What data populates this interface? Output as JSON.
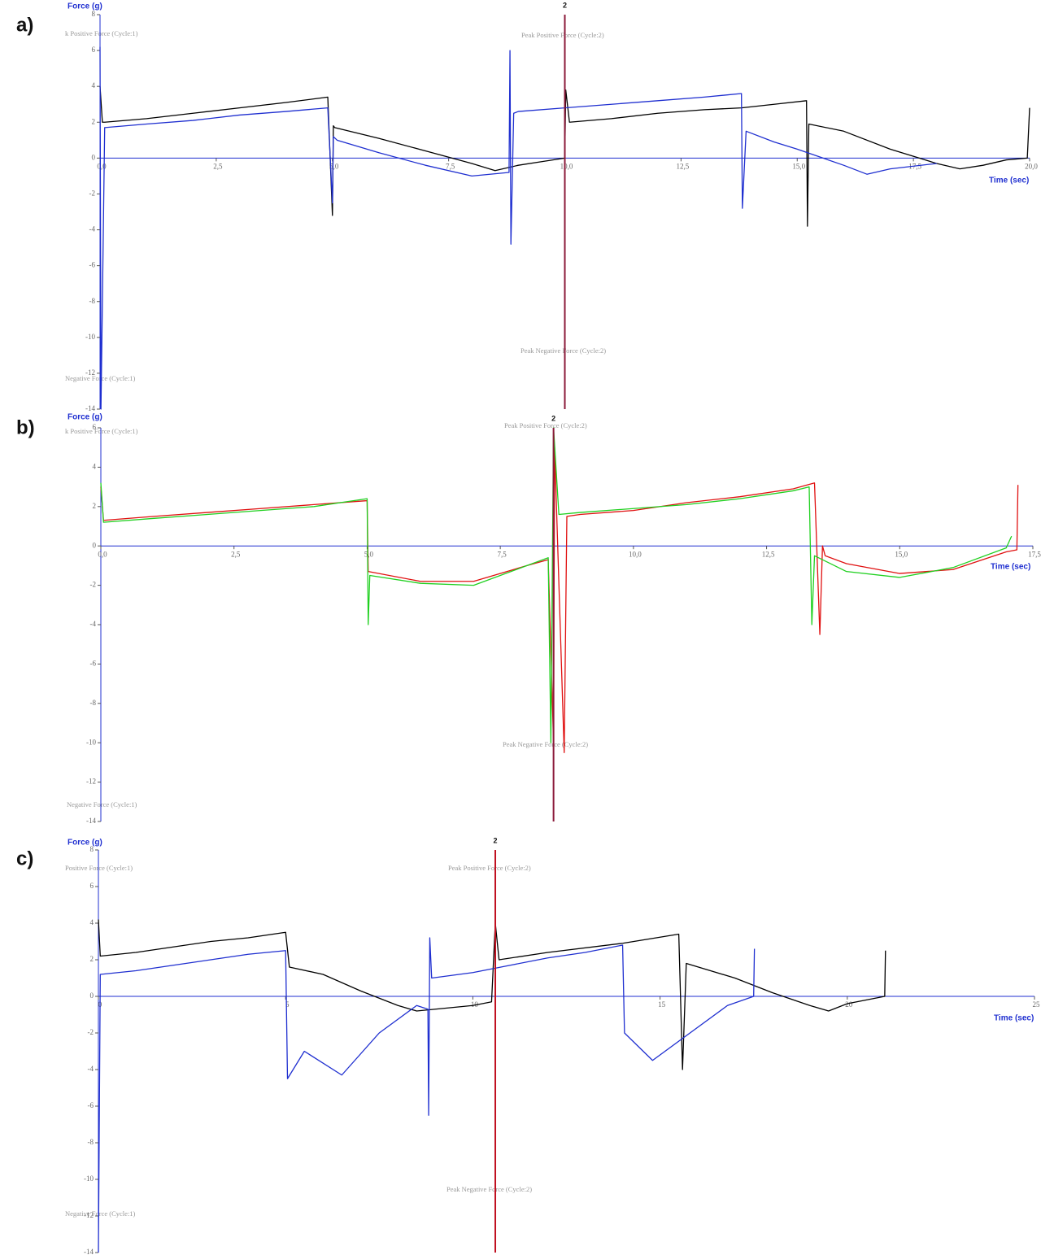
{
  "chart_data": [
    {
      "type": "line",
      "label": "a)",
      "title": "Force (g)",
      "x_label": "Time (sec)",
      "xlim": [
        0,
        20
      ],
      "ylim": [
        -14,
        8
      ],
      "xticks": [
        {
          "value": 0,
          "label": "0,0"
        },
        {
          "value": 2.5,
          "label": "2,5"
        },
        {
          "value": 5,
          "label": "5,0"
        },
        {
          "value": 7.5,
          "label": "7,5"
        },
        {
          "value": 10,
          "label": "10,0"
        },
        {
          "value": 12.5,
          "label": "12,5"
        },
        {
          "value": 15,
          "label": "15,0"
        },
        {
          "value": 17.5,
          "label": "17,5"
        },
        {
          "value": 20,
          "label": "20,0"
        }
      ],
      "yticks": [
        8,
        6,
        4,
        2,
        0,
        -2,
        -4,
        -6,
        -8,
        -10,
        -12,
        -14
      ],
      "annotations": [
        "k Positive Force (Cycle:1)",
        "Peak Positive Force (Cycle:2)",
        "Peak Negative Force (Cycle:2)",
        "Negative Force (Cycle:1)"
      ],
      "cursor": {
        "x": 10,
        "label": "2",
        "color": "#8b1a3a"
      },
      "series": [
        {
          "color": "#000000",
          "x": [
            0,
            0.05,
            0.1,
            1,
            2,
            3,
            4,
            4.9,
            5,
            5.02,
            5.05,
            6,
            7,
            8,
            8.5,
            9,
            9.5,
            10,
            10.02,
            10.1,
            11,
            12,
            13,
            13.8,
            14.5,
            15.2,
            15.22,
            15.25,
            16,
            17,
            18,
            18.5,
            19,
            19.5,
            19.95,
            20
          ],
          "values": [
            4,
            2,
            2,
            2.2,
            2.5,
            2.8,
            3.1,
            3.4,
            -3.2,
            1.8,
            1.7,
            1.1,
            0.4,
            -0.3,
            -0.7,
            -0.4,
            -0.2,
            0,
            3.8,
            2,
            2.2,
            2.5,
            2.7,
            2.8,
            3,
            3.2,
            -3.8,
            1.9,
            1.5,
            0.5,
            -0.3,
            -0.6,
            -0.4,
            -0.1,
            0,
            2.8
          ]
        },
        {
          "color": "#1f2fd0",
          "x": [
            0,
            0.02,
            0.1,
            1,
            2,
            3,
            4,
            4.9,
            5,
            5.02,
            5.1,
            6,
            7,
            8,
            8.8,
            8.82,
            8.84,
            8.9,
            9,
            10,
            11,
            12,
            13,
            13.8,
            13.82,
            13.9,
            14.5,
            15,
            16,
            16.5,
            17,
            18
          ],
          "values": [
            6.2,
            -14,
            1.7,
            1.9,
            2.1,
            2.4,
            2.6,
            2.8,
            -2.5,
            1.2,
            1,
            0.3,
            -0.4,
            -1,
            -0.8,
            6,
            -4.8,
            2.5,
            2.6,
            2.8,
            3,
            3.2,
            3.4,
            3.6,
            -2.8,
            1.5,
            0.9,
            0.5,
            -0.4,
            -0.9,
            -0.6,
            -0.3
          ]
        }
      ]
    },
    {
      "type": "line",
      "label": "b)",
      "title": "Force (g)",
      "x_label": "Time (sec)",
      "xlim": [
        0,
        17.5
      ],
      "ylim": [
        -14,
        6
      ],
      "xticks": [
        {
          "value": 0,
          "label": "0,0"
        },
        {
          "value": 2.5,
          "label": "2,5"
        },
        {
          "value": 5,
          "label": "5,0"
        },
        {
          "value": 7.5,
          "label": "7,5"
        },
        {
          "value": 10,
          "label": "10,0"
        },
        {
          "value": 12.5,
          "label": "12,5"
        },
        {
          "value": 15,
          "label": "15,0"
        },
        {
          "value": 17.5,
          "label": "17,5"
        }
      ],
      "yticks": [
        6,
        4,
        2,
        0,
        -2,
        -4,
        -6,
        -8,
        -10,
        -12,
        -14
      ],
      "annotations": [
        "k Positive Force (Cycle:1)",
        "Peak Positive Force (Cycle:2)",
        "Peak Negative Force (Cycle:2)",
        "Negative Force (Cycle:1)"
      ],
      "cursor": {
        "x": 8.5,
        "label": "2",
        "color": "#8b1a3a"
      },
      "series": [
        {
          "color": "#e01010",
          "x": [
            0,
            0.05,
            1,
            2,
            3,
            4,
            5,
            5.02,
            6,
            7,
            8,
            8.4,
            8.5,
            8.52,
            8.7,
            8.75,
            9,
            10,
            11,
            12,
            13,
            13.4,
            13.5,
            13.55,
            13.6,
            14,
            15,
            16,
            17,
            17.2,
            17.22
          ],
          "values": [
            3,
            1.3,
            1.5,
            1.7,
            1.9,
            2.1,
            2.3,
            -1.3,
            -1.8,
            -1.8,
            -1,
            -0.7,
            -10,
            5,
            -10.5,
            1.5,
            1.6,
            1.8,
            2.2,
            2.5,
            2.9,
            3.2,
            -4.5,
            0,
            -0.5,
            -0.9,
            -1.4,
            -1.2,
            -0.3,
            -0.2,
            3.1
          ]
        },
        {
          "color": "#20d020",
          "x": [
            0,
            0.05,
            1,
            2,
            3,
            4,
            5,
            5.02,
            5.05,
            6,
            7,
            8,
            8.4,
            8.45,
            8.5,
            8.6,
            9,
            10,
            11,
            12,
            13,
            13.3,
            13.35,
            13.4,
            14,
            15,
            16,
            17,
            17.1
          ],
          "values": [
            3.2,
            1.2,
            1.4,
            1.6,
            1.8,
            2,
            2.4,
            -4,
            -1.5,
            -1.9,
            -2,
            -1,
            -0.6,
            -10,
            6,
            1.6,
            1.7,
            1.9,
            2.1,
            2.4,
            2.8,
            3,
            -4,
            -0.5,
            -1.3,
            -1.6,
            -1.1,
            -0.1,
            0.5
          ]
        }
      ]
    },
    {
      "type": "line",
      "label": "c)",
      "title": "Force (g)",
      "x_label": "Time (sec)",
      "xlim": [
        0,
        25
      ],
      "ylim": [
        -14,
        8
      ],
      "xticks": [
        0,
        5,
        10,
        15,
        20,
        25
      ],
      "yticks": [
        8,
        6,
        4,
        2,
        0,
        -2,
        -4,
        -6,
        -8,
        -10,
        -12,
        -14
      ],
      "annotations": [
        "Positive Force (Cycle:1)",
        "Peak Positive Force (Cycle:2)",
        "Peak Negative Force (Cycle:2)",
        "Negative Force (Cycle:1)"
      ],
      "cursor": {
        "x": 10.6,
        "label": "2",
        "color": "#c01020"
      },
      "series": [
        {
          "color": "#000000",
          "x": [
            0,
            0.05,
            1,
            2,
            3,
            4,
            5,
            5.1,
            6,
            7,
            8,
            8.5,
            9,
            10,
            10.5,
            10.6,
            10.7,
            12,
            14,
            15.5,
            15.6,
            15.7,
            17,
            18,
            19,
            19.5,
            20,
            21,
            21.02
          ],
          "values": [
            4.2,
            2.2,
            2.4,
            2.7,
            3,
            3.2,
            3.5,
            1.6,
            1.2,
            0.3,
            -0.5,
            -0.8,
            -0.7,
            -0.5,
            -0.3,
            4,
            2,
            2.4,
            2.9,
            3.4,
            -4,
            1.8,
            1,
            0.2,
            -0.5,
            -0.8,
            -0.4,
            0,
            2.5
          ]
        },
        {
          "color": "#1f2fd0",
          "x": [
            0,
            0.05,
            1,
            2,
            3,
            4,
            5,
            5.05,
            5.5,
            6.5,
            7.5,
            8.5,
            8.8,
            8.82,
            8.85,
            8.9,
            10,
            11,
            12,
            13,
            14,
            14.05,
            14.8,
            15.8,
            16.8,
            17.5,
            17.52
          ],
          "values": [
            -14,
            1.2,
            1.4,
            1.7,
            2,
            2.3,
            2.5,
            -4.5,
            -3,
            -4.3,
            -2,
            -0.5,
            -0.7,
            -6.5,
            3.2,
            1,
            1.3,
            1.7,
            2.1,
            2.4,
            2.8,
            -2,
            -3.5,
            -2,
            -0.5,
            0,
            2.6
          ]
        }
      ]
    }
  ]
}
